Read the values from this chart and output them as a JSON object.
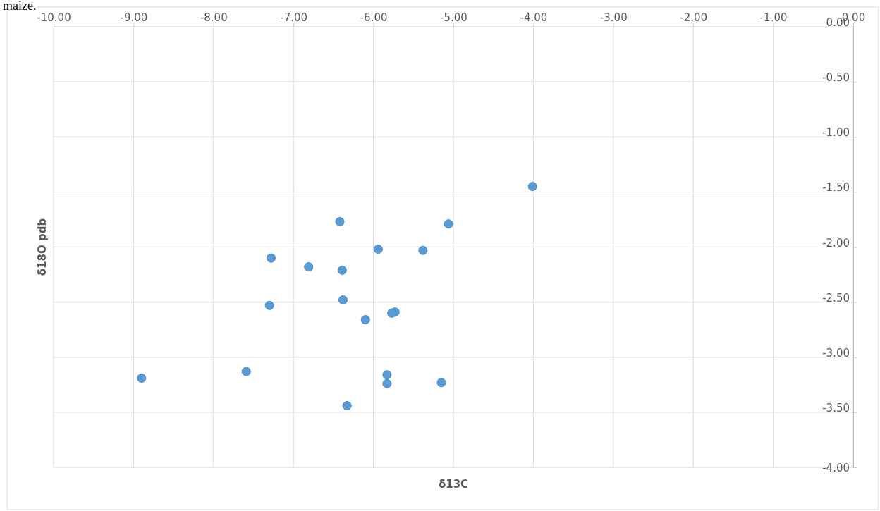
{
  "chart_data": {
    "type": "scatter",
    "xlabel": "δ13C",
    "ylabel": "δ18O pdb",
    "annotations": [
      "maize."
    ],
    "xlim": [
      -10,
      0
    ],
    "xticks": [
      {
        "value": -10,
        "label": "-10.00"
      },
      {
        "value": -9,
        "label": "-9.00"
      },
      {
        "value": -8,
        "label": "-8.00"
      },
      {
        "value": -7,
        "label": "-7.00"
      },
      {
        "value": -6,
        "label": "-6.00"
      },
      {
        "value": -5,
        "label": "-5.00"
      },
      {
        "value": -4,
        "label": "-4.00"
      },
      {
        "value": -3,
        "label": "-3.00"
      },
      {
        "value": -2,
        "label": "-2.00"
      },
      {
        "value": -1,
        "label": "-1.00"
      },
      {
        "value": 0,
        "label": "0.00"
      }
    ],
    "ylim": [
      -4,
      0
    ],
    "yticks": [
      {
        "value": 0,
        "label": "0.00"
      },
      {
        "value": -0.5,
        "label": "-0.50"
      },
      {
        "value": -1,
        "label": "-1.00"
      },
      {
        "value": -1.5,
        "label": "-1.50"
      },
      {
        "value": -2,
        "label": "-2.00"
      },
      {
        "value": -2.5,
        "label": "-2.50"
      },
      {
        "value": -3,
        "label": "-3.00"
      },
      {
        "value": -3.5,
        "label": "-3.50"
      },
      {
        "value": -4,
        "label": "-4.00"
      }
    ],
    "grid": true,
    "marker": "circle",
    "series": [
      {
        "color": "#5b9bd5",
        "x": [
          -4.01,
          -6.42,
          -5.06,
          -5.94,
          -5.38,
          -7.28,
          -6.81,
          -6.39,
          -6.38,
          -7.3,
          -5.73,
          -5.77,
          -6.1,
          -7.59,
          -8.9,
          -5.83,
          -5.83,
          -5.15,
          -6.33
        ],
        "values": [
          -1.45,
          -1.77,
          -1.79,
          -2.02,
          -2.03,
          -2.1,
          -2.18,
          -2.21,
          -2.48,
          -2.53,
          -2.59,
          -2.6,
          -2.66,
          -3.13,
          -3.19,
          -3.16,
          -3.24,
          -3.23,
          -3.44
        ]
      }
    ]
  }
}
